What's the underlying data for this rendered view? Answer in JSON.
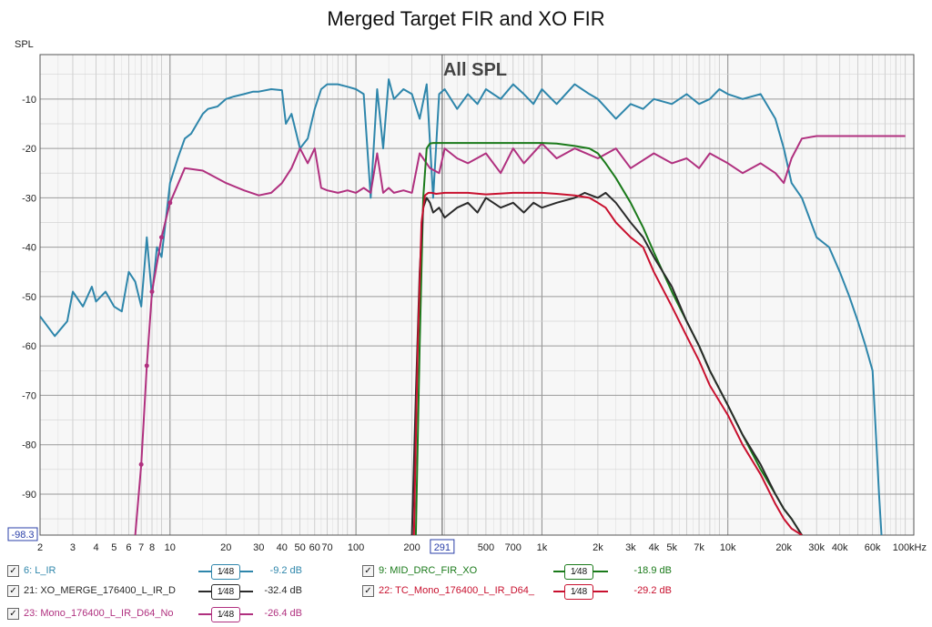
{
  "title": "Merged Target FIR and XO FIR",
  "chart_data": {
    "type": "line",
    "title": "Merged Target FIR and XO FIR",
    "annotation": "All SPL",
    "ylabel": "SPL",
    "xlabel": "",
    "x_scale": "log",
    "xlim": [
      2,
      100000
    ],
    "ylim": [
      -98.3,
      -1
    ],
    "y_min_label": "-98.3",
    "cursor_label": "291",
    "cursor_x": 291,
    "y_ticks": [
      -10,
      -20,
      -30,
      -40,
      -50,
      -60,
      -70,
      -80,
      -90
    ],
    "y_tick_labels": [
      "-10",
      "-20",
      "-30",
      "-40",
      "-50",
      "-60",
      "-70",
      "-80",
      "-90"
    ],
    "x_ticks": [
      2,
      3,
      4,
      5,
      6,
      7,
      8,
      10,
      20,
      30,
      40,
      50,
      60,
      70,
      100,
      200,
      300,
      500,
      700,
      1000,
      2000,
      3000,
      4000,
      5000,
      7000,
      10000,
      20000,
      30000,
      40000,
      60000,
      100000
    ],
    "x_tick_labels": [
      "2",
      "3",
      "4",
      "5",
      "6",
      "7",
      "8",
      "10",
      "20",
      "30",
      "40",
      "50",
      "60",
      "70",
      "100",
      "200",
      "",
      "500",
      "700",
      "1k",
      "2k",
      "3k",
      "4k",
      "5k",
      "7k",
      "10k",
      "20k",
      "30k",
      "40k",
      "60k",
      "100kHz"
    ],
    "grid": true,
    "series": [
      {
        "name": "6: L_IR",
        "color": "#2e86ab",
        "legend_value": "-9.2 dB",
        "x": [
          2,
          2.4,
          2.8,
          3,
          3.4,
          3.8,
          4,
          4.5,
          5,
          5.5,
          6,
          6.5,
          7,
          7.5,
          8,
          8.5,
          9,
          10,
          11,
          12,
          13,
          15,
          16,
          18,
          20,
          22,
          25,
          28,
          30,
          35,
          40,
          42,
          45,
          50,
          55,
          60,
          65,
          70,
          80,
          90,
          100,
          110,
          120,
          130,
          140,
          150,
          160,
          180,
          200,
          220,
          240,
          260,
          280,
          300,
          350,
          400,
          450,
          500,
          600,
          700,
          800,
          900,
          1000,
          1200,
          1500,
          1800,
          2000,
          2500,
          3000,
          3500,
          4000,
          5000,
          6000,
          7000,
          8000,
          9000,
          10000,
          12000,
          15000,
          18000,
          20000,
          22000,
          25000,
          28000,
          30000,
          35000,
          40000,
          45000,
          50000,
          55000,
          60000,
          63000,
          65000,
          67000
        ],
        "y": [
          -54,
          -58,
          -55,
          -49,
          -52,
          -48,
          -51,
          -49,
          -52,
          -53,
          -45,
          -47,
          -52,
          -38,
          -50,
          -40,
          -42,
          -27,
          -22,
          -18,
          -17,
          -13,
          -12,
          -11.5,
          -10,
          -9.5,
          -9,
          -8.5,
          -8.5,
          -8,
          -8.2,
          -15,
          -13,
          -20,
          -18,
          -12,
          -8,
          -7,
          -7,
          -7.5,
          -8,
          -9,
          -30,
          -8,
          -20,
          -6,
          -10,
          -8,
          -9,
          -14,
          -7,
          -30,
          -9,
          -8,
          -12,
          -9,
          -11,
          -8,
          -10,
          -7,
          -9,
          -11,
          -8,
          -11,
          -7,
          -9,
          -10,
          -14,
          -11,
          -12,
          -10,
          -11,
          -9,
          -11,
          -10,
          -8,
          -9,
          -10,
          -9,
          -14,
          -20,
          -27,
          -30,
          -35,
          -38,
          -40,
          -45,
          -50,
          -55,
          -60,
          -65,
          -80,
          -90,
          -98.3
        ]
      },
      {
        "name": "21: XO_MERGE_176400_L_IR_D",
        "color": "#2a2a2a",
        "legend_value": "-32.4 dB",
        "x": [
          200,
          210,
          220,
          230,
          240,
          250,
          260,
          280,
          300,
          350,
          400,
          450,
          500,
          600,
          700,
          800,
          900,
          1000,
          1200,
          1500,
          1700,
          2000,
          2200,
          2500,
          3000,
          3500,
          4000,
          5000,
          6000,
          7000,
          8000,
          10000,
          12000,
          15000,
          18000,
          20000,
          22000,
          25000
        ],
        "y": [
          -98.3,
          -70,
          -45,
          -32,
          -30,
          -31,
          -33,
          -32,
          -34,
          -32,
          -31,
          -33,
          -30,
          -32,
          -31,
          -33,
          -31,
          -32,
          -31,
          -30,
          -29,
          -30,
          -29,
          -31,
          -35,
          -38,
          -42,
          -48,
          -55,
          -60,
          -65,
          -72,
          -78,
          -84,
          -90,
          -93,
          -95,
          -98.3
        ]
      },
      {
        "name": "9: MID_DRC_FIR_XO",
        "color": "#1a7a1a",
        "legend_value": "-18.9 dB",
        "x": [
          210,
          220,
          230,
          240,
          250,
          260,
          280,
          300,
          400,
          500,
          700,
          1000,
          1200,
          1500,
          1800,
          2000,
          2200,
          2500,
          3000,
          3500,
          4000,
          5000,
          6000,
          7000,
          8000,
          10000,
          12000,
          15000,
          18000,
          20000,
          22000,
          25000
        ],
        "y": [
          -98.3,
          -60,
          -30,
          -20,
          -19,
          -18.9,
          -18.9,
          -18.9,
          -18.9,
          -18.9,
          -18.9,
          -18.9,
          -19,
          -19.5,
          -20,
          -21,
          -23,
          -26,
          -31,
          -36,
          -41,
          -49,
          -55,
          -60,
          -65,
          -72,
          -78,
          -85,
          -90,
          -93,
          -95,
          -98.3
        ]
      },
      {
        "name": "22: TC_Mono_176400_L_IR_D64_",
        "color": "#c8102e",
        "legend_value": "-29.2 dB",
        "x": [
          205,
          215,
          225,
          235,
          245,
          255,
          270,
          300,
          400,
          500,
          700,
          1000,
          1200,
          1500,
          1800,
          2000,
          2200,
          2500,
          3000,
          3500,
          4000,
          5000,
          6000,
          7000,
          8000,
          10000,
          12000,
          15000,
          18000,
          20000,
          22000,
          25000
        ],
        "y": [
          -98.3,
          -60,
          -35,
          -29.5,
          -29,
          -29,
          -29.2,
          -29,
          -29,
          -29.3,
          -29,
          -29,
          -29.2,
          -29.5,
          -30,
          -31,
          -32,
          -35,
          -38,
          -40,
          -45,
          -52,
          -58,
          -63,
          -68,
          -74,
          -80,
          -86,
          -92,
          -95,
          -97,
          -98.3
        ]
      },
      {
        "name": "23: Mono_176400_L_IR_D64_No",
        "color": "#b0307f",
        "legend_value": "-26.4 dB",
        "x": [
          6.5,
          7,
          7.5,
          8,
          9,
          10,
          12,
          15,
          20,
          25,
          30,
          35,
          40,
          45,
          50,
          55,
          60,
          65,
          70,
          80,
          90,
          100,
          110,
          120,
          130,
          140,
          150,
          160,
          180,
          200,
          220,
          250,
          280,
          300,
          350,
          400,
          500,
          600,
          700,
          800,
          1000,
          1200,
          1500,
          2000,
          2500,
          3000,
          4000,
          5000,
          6000,
          7000,
          8000,
          10000,
          12000,
          15000,
          18000,
          20000,
          22000,
          25000,
          30000,
          40000,
          50000,
          60000,
          70000,
          80000,
          90000
        ],
        "y": [
          -98.3,
          -84,
          -64,
          -49,
          -38,
          -31,
          -24,
          -24.5,
          -27,
          -28.5,
          -29.5,
          -29,
          -27,
          -24,
          -20,
          -23,
          -20,
          -28,
          -28.5,
          -29,
          -28.5,
          -29,
          -28,
          -29,
          -21,
          -29,
          -28,
          -29,
          -28.5,
          -29,
          -21,
          -24,
          -25,
          -20,
          -22,
          -23,
          -21,
          -25,
          -20,
          -23,
          -19,
          -22,
          -20,
          -22,
          -20,
          -24,
          -21,
          -23,
          -22,
          -24,
          -21,
          -23,
          -25,
          -23,
          -25,
          -27,
          -22,
          -18,
          -17.5,
          -17.5,
          -17.5,
          -17.5,
          -17.5,
          -17.5,
          -17.5
        ]
      }
    ]
  },
  "legend": {
    "scale_label": "1⁄48",
    "check_mark": "✓"
  }
}
